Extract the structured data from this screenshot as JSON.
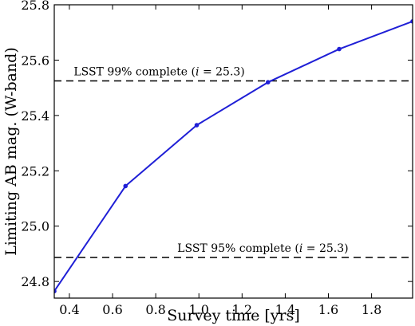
{
  "chart_data": {
    "type": "line",
    "xlabel": "Survey time [yrs]",
    "ylabel": "Limiting AB mag. (W-band)",
    "xlim": [
      0.33,
      1.99
    ],
    "ylim": [
      24.74,
      25.8
    ],
    "x_ticks": [
      0.4,
      0.6,
      0.8,
      1.0,
      1.2,
      1.4,
      1.6,
      1.8
    ],
    "x_tick_labels": [
      "0.4",
      "0.6",
      "0.8",
      "1.0",
      "1.2",
      "1.4",
      "1.6",
      "1.8"
    ],
    "y_ticks": [
      24.8,
      25.0,
      25.2,
      25.4,
      25.6,
      25.8
    ],
    "y_tick_labels": [
      "24.8",
      "25.0",
      "25.2",
      "25.4",
      "25.6",
      "25.8"
    ],
    "grid": false,
    "series": [
      {
        "color": "#1f1fd6",
        "x": [
          0.33,
          0.66,
          0.99,
          1.32,
          1.65,
          1.99
        ],
        "y": [
          24.765,
          25.145,
          25.365,
          25.52,
          25.64,
          25.74
        ]
      }
    ],
    "reference_lines": [
      {
        "y": 25.525,
        "label": "LSST 99% complete (i = 25.3)",
        "label_x": 0.42
      },
      {
        "y": 24.887,
        "label": "LSST 95% complete (i = 25.3)",
        "label_x": 0.9
      }
    ],
    "colors": {
      "line": "#1f1fd6",
      "reference": "#000000",
      "axes": "#000000"
    }
  }
}
